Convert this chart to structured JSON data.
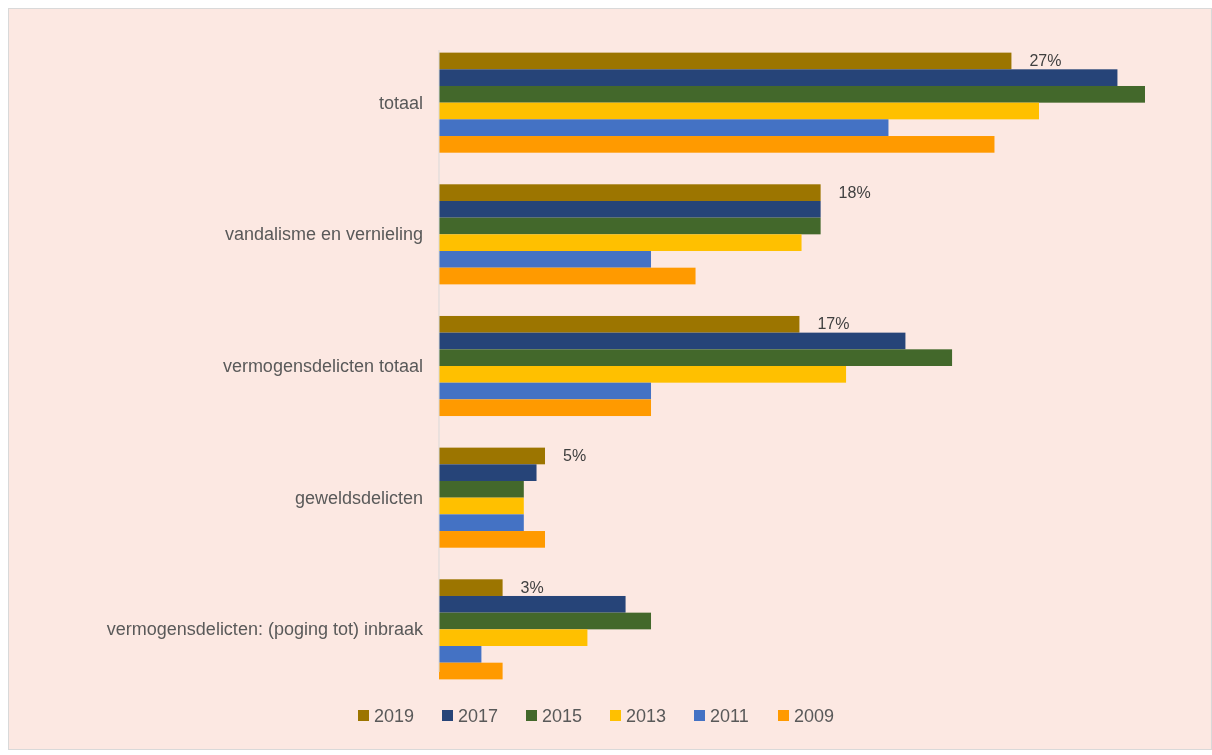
{
  "chart_data": {
    "type": "bar",
    "orientation": "horizontal",
    "categories": [
      "totaal",
      "vandalisme en vernieling",
      "vermogensdelicten totaal",
      "geweldsdelicten",
      "vermogensdelicten: (poging tot) inbraak"
    ],
    "series": [
      {
        "name": "2019",
        "color": "#9c7500",
        "values": [
          27,
          18,
          17,
          5,
          3
        ],
        "value_labels": [
          "27%",
          "18%",
          "17%",
          "5%",
          "3%"
        ]
      },
      {
        "name": "2017",
        "color": "#264478",
        "values": [
          32,
          18,
          22,
          4.6,
          8.8
        ]
      },
      {
        "name": "2015",
        "color": "#43682b",
        "values": [
          33.3,
          18,
          24.2,
          4,
          10
        ]
      },
      {
        "name": "2013",
        "color": "#ffc000",
        "values": [
          28.3,
          17.1,
          19.2,
          4,
          7
        ]
      },
      {
        "name": "2011",
        "color": "#4472c4",
        "values": [
          21.2,
          10,
          10,
          4,
          2
        ]
      },
      {
        "name": "2009",
        "color": "#ff9a00",
        "values": [
          26.2,
          12.1,
          10,
          5,
          3
        ]
      }
    ],
    "legend": "bottom",
    "grid": false
  }
}
